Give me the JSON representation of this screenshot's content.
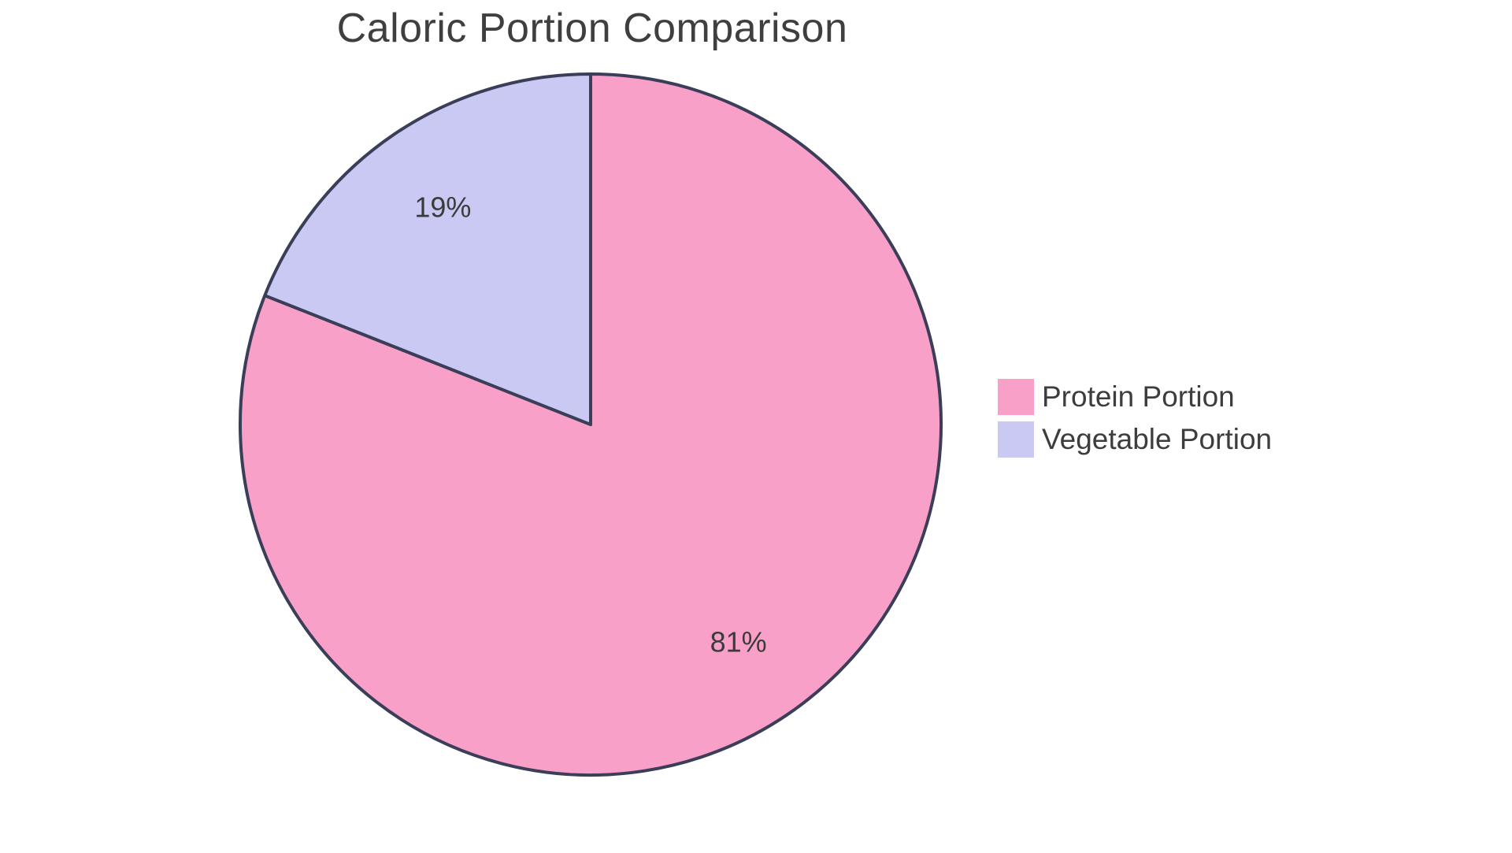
{
  "chart_data": {
    "type": "pie",
    "title": "Caloric Portion Comparison",
    "slices": [
      {
        "label": "Protein Portion",
        "value": 81,
        "pct_label": "81%",
        "color": "#F9A0C8"
      },
      {
        "label": "Vegetable Portion",
        "value": 19,
        "pct_label": "19%",
        "color": "#C9C9F4"
      }
    ],
    "start_angle_deg": -90,
    "direction": "clockwise",
    "slice_border_color": "#3B3E58",
    "slice_border_width": 4,
    "pct_label_color": "#3b3b3b",
    "title_color": "#3f3f3f",
    "legend_text_color": "#3d3d3d",
    "legend_position": "right",
    "background_color": "#ffffff",
    "labels_inside": true
  }
}
